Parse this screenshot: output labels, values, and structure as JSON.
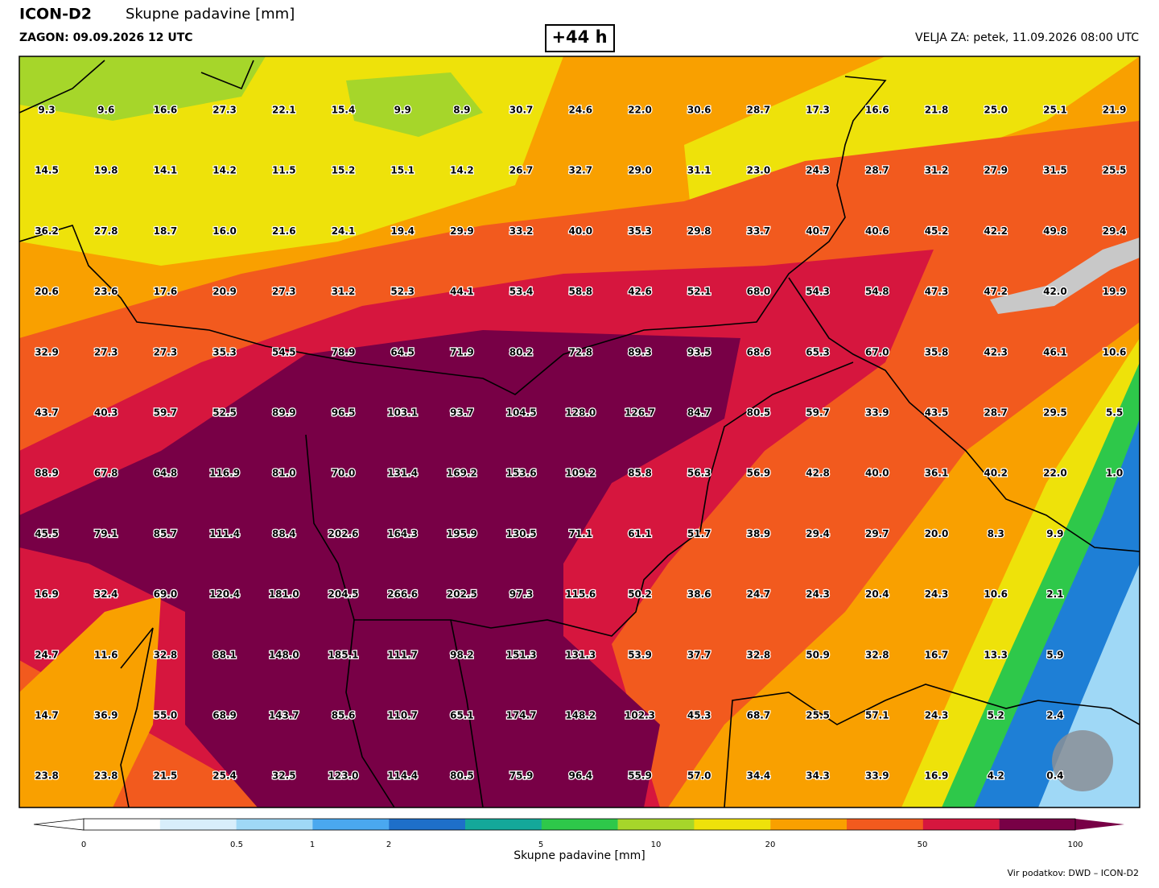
{
  "header": {
    "model": "ICON-D2",
    "title": "Skupne padavine [mm]",
    "run": "ZAGON: 09.09.2026 12 UTC",
    "lead": "+44 h",
    "valid": "VELJA ZA: petek, 11.09.2026 08:00 UTC"
  },
  "grid": {
    "rows": [
      [
        "9.3",
        "9.6",
        "16.6",
        "27.3",
        "22.1",
        "15.4",
        "9.9",
        "8.9",
        "30.7",
        "24.6",
        "22.0",
        "30.6",
        "28.7",
        "17.3",
        "16.6",
        "21.8",
        "25.0",
        "25.1",
        "21.9"
      ],
      [
        "14.5",
        "19.8",
        "14.1",
        "14.2",
        "11.5",
        "15.2",
        "15.1",
        "14.2",
        "26.7",
        "32.7",
        "29.0",
        "31.1",
        "23.0",
        "24.3",
        "28.7",
        "31.2",
        "27.9",
        "31.5",
        "25.5"
      ],
      [
        "36.2",
        "27.8",
        "18.7",
        "16.0",
        "21.6",
        "24.1",
        "19.4",
        "29.9",
        "33.2",
        "40.0",
        "35.3",
        "29.8",
        "33.7",
        "40.7",
        "40.6",
        "45.2",
        "42.2",
        "49.8",
        "29.4"
      ],
      [
        "20.6",
        "23.6",
        "17.6",
        "20.9",
        "27.3",
        "31.2",
        "52.3",
        "44.1",
        "53.4",
        "58.8",
        "42.6",
        "52.1",
        "68.0",
        "54.3",
        "54.8",
        "47.3",
        "47.2",
        "42.0",
        "19.9"
      ],
      [
        "32.9",
        "27.3",
        "27.3",
        "35.3",
        "54.5",
        "78.9",
        "64.5",
        "71.9",
        "80.2",
        "72.8",
        "89.3",
        "93.5",
        "68.6",
        "65.3",
        "67.0",
        "35.8",
        "42.3",
        "46.1",
        "10.6"
      ],
      [
        "43.7",
        "40.3",
        "59.7",
        "52.5",
        "89.9",
        "96.5",
        "103.1",
        "93.7",
        "104.5",
        "128.0",
        "126.7",
        "84.7",
        "80.5",
        "59.7",
        "33.9",
        "43.5",
        "28.7",
        "29.5",
        "5.5"
      ],
      [
        "88.9",
        "67.8",
        "64.8",
        "116.9",
        "81.0",
        "70.0",
        "131.4",
        "169.2",
        "153.6",
        "109.2",
        "85.8",
        "56.3",
        "56.9",
        "42.8",
        "40.0",
        "36.1",
        "40.2",
        "22.0",
        "1.0"
      ],
      [
        "45.5",
        "79.1",
        "85.7",
        "111.4",
        "88.4",
        "202.6",
        "164.3",
        "195.9",
        "130.5",
        "71.1",
        "61.1",
        "51.7",
        "38.9",
        "29.4",
        "29.7",
        "20.0",
        "8.3",
        "9.9"
      ],
      [
        "16.9",
        "32.4",
        "69.0",
        "120.4",
        "181.0",
        "204.5",
        "266.6",
        "202.5",
        "97.3",
        "115.6",
        "50.2",
        "38.6",
        "24.7",
        "24.3",
        "20.4",
        "24.3",
        "10.6",
        "2.1"
      ],
      [
        "24.7",
        "11.6",
        "32.8",
        "88.1",
        "148.0",
        "185.1",
        "111.7",
        "98.2",
        "151.3",
        "131.3",
        "53.9",
        "37.7",
        "32.8",
        "50.9",
        "32.8",
        "16.7",
        "13.3",
        "5.9"
      ],
      [
        "14.7",
        "36.9",
        "55.0",
        "68.9",
        "143.7",
        "85.6",
        "110.7",
        "65.1",
        "174.7",
        "148.2",
        "102.3",
        "45.3",
        "68.7",
        "25.5",
        "57.1",
        "24.3",
        "5.2",
        "2.4"
      ],
      [
        "23.8",
        "23.8",
        "21.5",
        "25.4",
        "32.5",
        "123.0",
        "114.4",
        "80.5",
        "75.9",
        "96.4",
        "55.9",
        "57.0",
        "34.4",
        "34.3",
        "33.9",
        "16.9",
        "4.2",
        "0.4"
      ]
    ]
  },
  "colorbar": {
    "labels": [
      "0",
      "0.5",
      "1",
      "2",
      "5",
      "10",
      "20",
      "50",
      "100"
    ],
    "title": "Skupne padavine [mm]"
  },
  "footer": {
    "source": "Vir podatkov: DWD – ICON-D2"
  }
}
